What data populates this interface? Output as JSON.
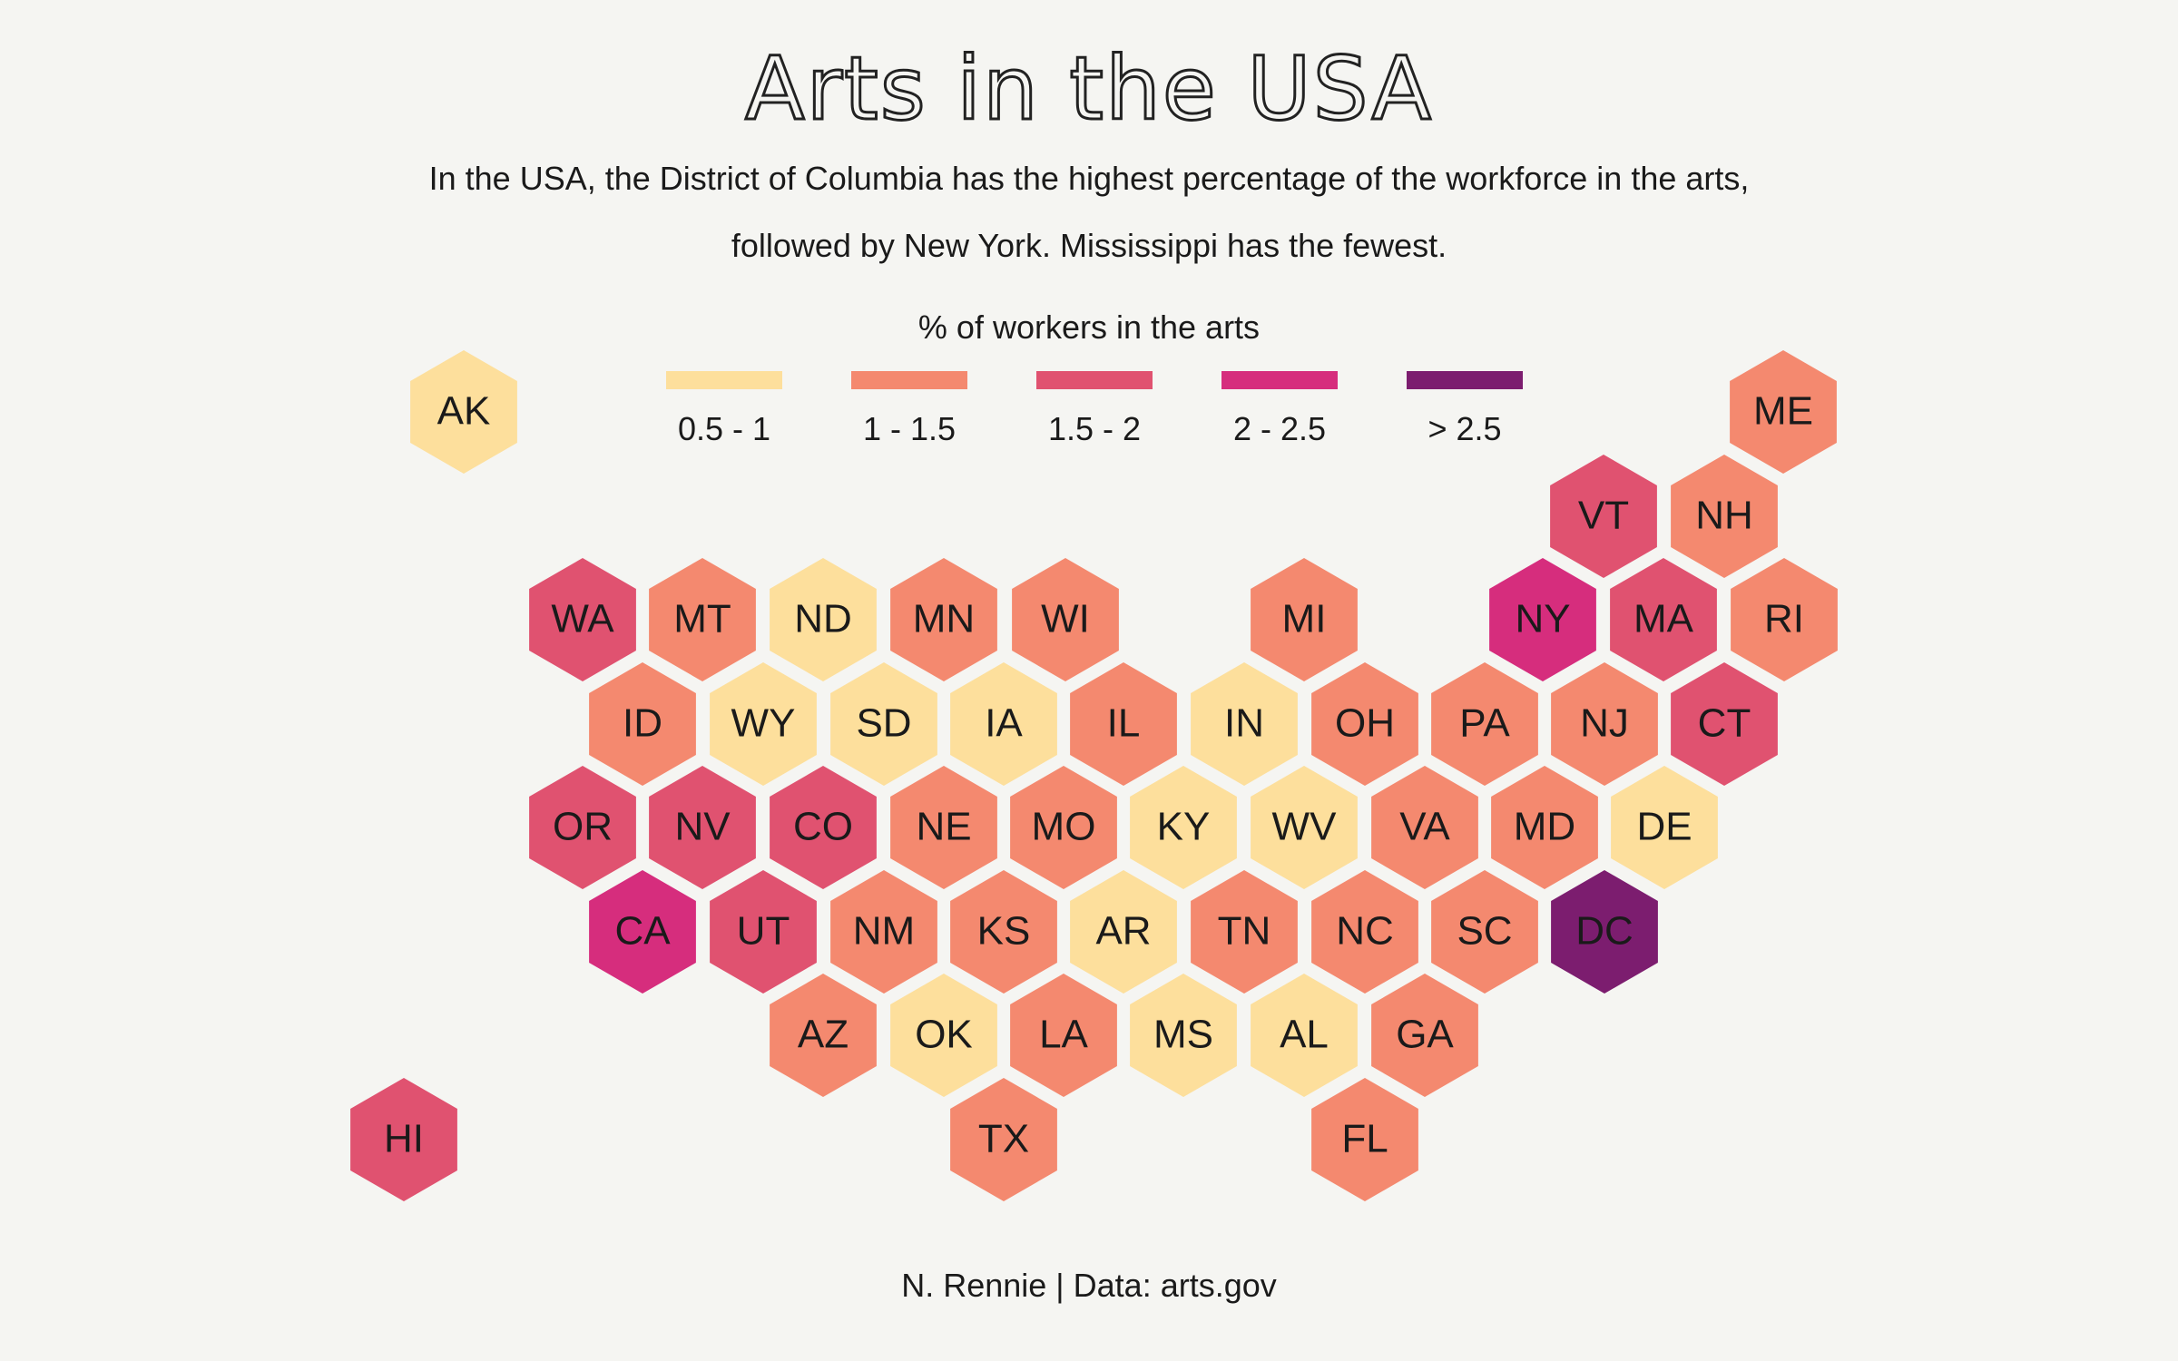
{
  "title": "Arts in the USA",
  "subtitle": [
    "In the USA, the District of Columbia has the highest percentage of the workforce in the arts,",
    "followed by New York. Mississippi has the fewest."
  ],
  "legend": {
    "title": "% of workers in the arts",
    "items": [
      {
        "label": "0.5 - 1",
        "color": "#fddf9c"
      },
      {
        "label": "1 - 1.5",
        "color": "#f4896f"
      },
      {
        "label": "1.5 - 2",
        "color": "#e05270"
      },
      {
        "label": "2 - 2.5",
        "color": "#d62d7d"
      },
      {
        "label": "> 2.5",
        "color": "#7c1d6f"
      }
    ]
  },
  "caption": "N. Rennie | Data: arts.gov",
  "states": [
    {
      "code": "AK",
      "bin": 0
    },
    {
      "code": "ME",
      "bin": 1
    },
    {
      "code": "VT",
      "bin": 2
    },
    {
      "code": "NH",
      "bin": 1
    },
    {
      "code": "WA",
      "bin": 2
    },
    {
      "code": "MT",
      "bin": 1
    },
    {
      "code": "ND",
      "bin": 0
    },
    {
      "code": "MN",
      "bin": 1
    },
    {
      "code": "WI",
      "bin": 1
    },
    {
      "code": "MI",
      "bin": 1
    },
    {
      "code": "NY",
      "bin": 3
    },
    {
      "code": "MA",
      "bin": 2
    },
    {
      "code": "RI",
      "bin": 1
    },
    {
      "code": "ID",
      "bin": 1
    },
    {
      "code": "WY",
      "bin": 0
    },
    {
      "code": "SD",
      "bin": 0
    },
    {
      "code": "IA",
      "bin": 0
    },
    {
      "code": "IL",
      "bin": 1
    },
    {
      "code": "IN",
      "bin": 0
    },
    {
      "code": "OH",
      "bin": 1
    },
    {
      "code": "PA",
      "bin": 1
    },
    {
      "code": "NJ",
      "bin": 1
    },
    {
      "code": "CT",
      "bin": 2
    },
    {
      "code": "OR",
      "bin": 2
    },
    {
      "code": "NV",
      "bin": 2
    },
    {
      "code": "CO",
      "bin": 2
    },
    {
      "code": "NE",
      "bin": 1
    },
    {
      "code": "MO",
      "bin": 1
    },
    {
      "code": "KY",
      "bin": 0
    },
    {
      "code": "WV",
      "bin": 0
    },
    {
      "code": "VA",
      "bin": 1
    },
    {
      "code": "MD",
      "bin": 1
    },
    {
      "code": "DE",
      "bin": 0
    },
    {
      "code": "CA",
      "bin": 3
    },
    {
      "code": "UT",
      "bin": 2
    },
    {
      "code": "NM",
      "bin": 1
    },
    {
      "code": "KS",
      "bin": 1
    },
    {
      "code": "AR",
      "bin": 0
    },
    {
      "code": "TN",
      "bin": 1
    },
    {
      "code": "NC",
      "bin": 1
    },
    {
      "code": "SC",
      "bin": 1
    },
    {
      "code": "DC",
      "bin": 4
    },
    {
      "code": "AZ",
      "bin": 1
    },
    {
      "code": "OK",
      "bin": 0
    },
    {
      "code": "LA",
      "bin": 1
    },
    {
      "code": "MS",
      "bin": 0
    },
    {
      "code": "AL",
      "bin": 0
    },
    {
      "code": "GA",
      "bin": 1
    },
    {
      "code": "HI",
      "bin": 2
    },
    {
      "code": "TX",
      "bin": 1
    },
    {
      "code": "FL",
      "bin": 1
    }
  ]
}
